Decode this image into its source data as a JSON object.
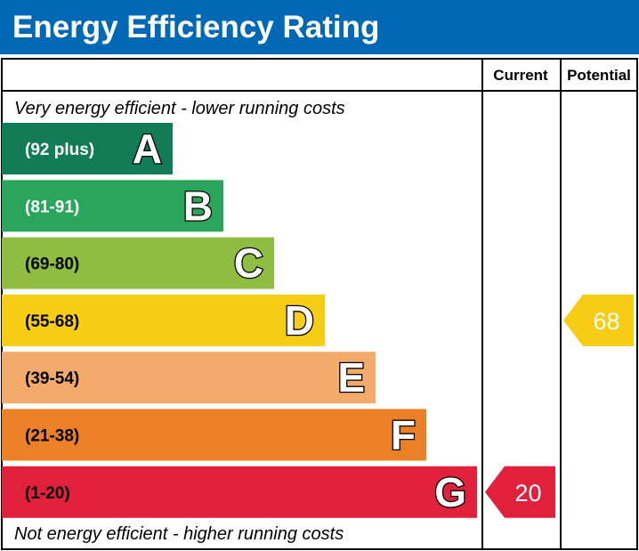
{
  "title": "Energy Efficiency Rating",
  "colors": {
    "header_bg": "#0068b4",
    "border": "#000000"
  },
  "chart_data": {
    "type": "bar",
    "columns": {
      "current": "Current",
      "potential": "Potential"
    },
    "top_note": "Very energy efficient - lower running costs",
    "bottom_note": "Not energy efficient - higher running costs",
    "bands": [
      {
        "letter": "A",
        "range": "(92 plus)",
        "min": 92,
        "max": 100,
        "color": "#127c56",
        "text_color": "#ffffff"
      },
      {
        "letter": "B",
        "range": "(81-91)",
        "min": 81,
        "max": 91,
        "color": "#2ba55c",
        "text_color": "#ffffff"
      },
      {
        "letter": "C",
        "range": "(69-80)",
        "min": 69,
        "max": 80,
        "color": "#8fbd42",
        "text_color": "#000000"
      },
      {
        "letter": "D",
        "range": "(55-68)",
        "min": 55,
        "max": 68,
        "color": "#f6cd14",
        "text_color": "#000000"
      },
      {
        "letter": "E",
        "range": "(39-54)",
        "min": 39,
        "max": 54,
        "color": "#f3aa6b",
        "text_color": "#000000"
      },
      {
        "letter": "F",
        "range": "(21-38)",
        "min": 21,
        "max": 38,
        "color": "#ec8027",
        "text_color": "#000000"
      },
      {
        "letter": "G",
        "range": "(1-20)",
        "min": 1,
        "max": 20,
        "color": "#e1213b",
        "text_color": "#000000"
      }
    ],
    "current": {
      "value": 20,
      "band": "G",
      "color": "#e1213b"
    },
    "potential": {
      "value": 68,
      "band": "D",
      "color": "#f6cd14"
    }
  }
}
